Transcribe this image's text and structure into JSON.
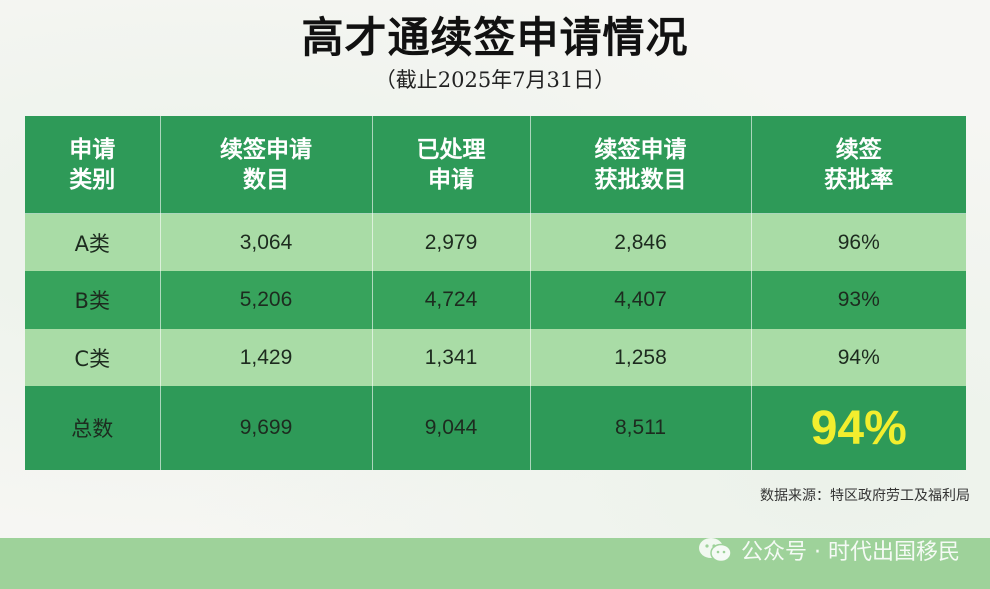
{
  "title": "高才通续签申请情况",
  "subtitle": "（截止2025年7月31日）",
  "table": {
    "headers": [
      [
        "申请",
        "类别"
      ],
      [
        "续签申请",
        "数目"
      ],
      [
        "已处理",
        "申请"
      ],
      [
        "续签申请",
        "获批数目"
      ],
      [
        "续签",
        "获批率"
      ]
    ],
    "rows": [
      [
        "A类",
        "3,064",
        "2,979",
        "2,846",
        "96%"
      ],
      [
        "B类",
        "5,206",
        "4,724",
        "4,407",
        "93%"
      ],
      [
        "C类",
        "1,429",
        "1,341",
        "1,258",
        "94%"
      ],
      [
        "总数",
        "9,699",
        "9,044",
        "8,511",
        "94%"
      ]
    ]
  },
  "source": "数据来源：特区政府劳工及福利局",
  "watermark": {
    "text": "公众号 · 时代出国移民",
    "icon": "wechat-icon"
  },
  "colors": {
    "header_green": "#2e9a58",
    "light_row": "#a9dca6",
    "dark_row": "#37a35c",
    "highlight_yellow": "#f2ee2e"
  }
}
